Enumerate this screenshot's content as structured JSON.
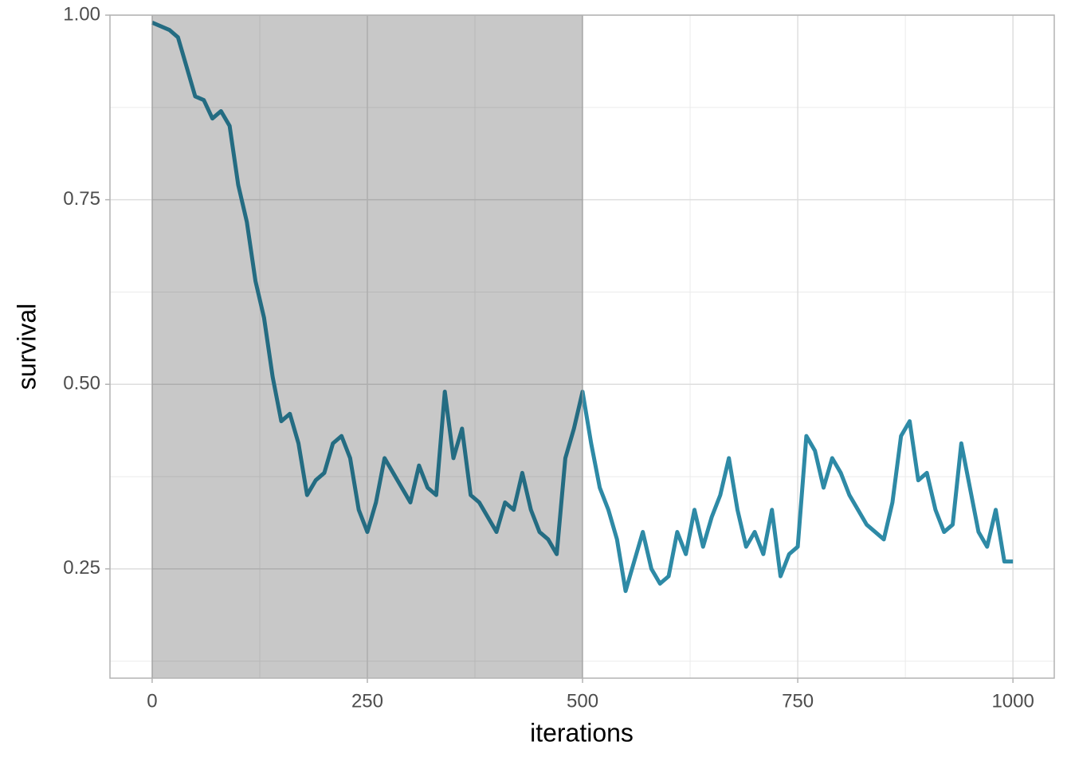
{
  "chart_data": {
    "type": "line",
    "x_label": "iterations",
    "y_label": "survival",
    "x": [
      0,
      10,
      20,
      30,
      40,
      50,
      60,
      70,
      80,
      90,
      100,
      110,
      120,
      130,
      140,
      150,
      160,
      170,
      180,
      190,
      200,
      210,
      220,
      230,
      240,
      250,
      260,
      270,
      280,
      290,
      300,
      310,
      320,
      330,
      340,
      350,
      360,
      370,
      380,
      390,
      400,
      410,
      420,
      430,
      440,
      450,
      460,
      470,
      480,
      490,
      500,
      510,
      520,
      530,
      540,
      550,
      560,
      570,
      580,
      590,
      600,
      610,
      620,
      630,
      640,
      650,
      660,
      670,
      680,
      690,
      700,
      710,
      720,
      730,
      740,
      750,
      760,
      770,
      780,
      790,
      800,
      810,
      820,
      830,
      840,
      850,
      860,
      870,
      880,
      890,
      900,
      910,
      920,
      930,
      940,
      950,
      960,
      970,
      980,
      990,
      1000
    ],
    "series": [
      {
        "color": "#2e8aa6",
        "values": [
          0.99,
          0.985,
          0.98,
          0.97,
          0.93,
          0.89,
          0.885,
          0.86,
          0.87,
          0.85,
          0.77,
          0.72,
          0.64,
          0.59,
          0.51,
          0.45,
          0.46,
          0.42,
          0.35,
          0.37,
          0.38,
          0.42,
          0.43,
          0.4,
          0.33,
          0.3,
          0.34,
          0.4,
          0.38,
          0.36,
          0.34,
          0.39,
          0.36,
          0.35,
          0.49,
          0.4,
          0.44,
          0.35,
          0.34,
          0.32,
          0.3,
          0.34,
          0.33,
          0.38,
          0.33,
          0.3,
          0.29,
          0.27,
          0.4,
          0.44,
          0.49,
          0.42,
          0.36,
          0.33,
          0.29,
          0.22,
          0.26,
          0.3,
          0.25,
          0.23,
          0.24,
          0.3,
          0.27,
          0.33,
          0.28,
          0.32,
          0.35,
          0.4,
          0.33,
          0.28,
          0.3,
          0.27,
          0.33,
          0.24,
          0.27,
          0.28,
          0.43,
          0.41,
          0.36,
          0.4,
          0.38,
          0.35,
          0.33,
          0.31,
          0.3,
          0.29,
          0.34,
          0.43,
          0.45,
          0.37,
          0.38,
          0.33,
          0.3,
          0.31,
          0.42,
          0.36,
          0.3,
          0.28,
          0.33,
          0.26,
          0.26
        ]
      }
    ],
    "shade_xlim": [
      0,
      500
    ],
    "xlim": [
      -49,
      1048
    ],
    "ylim": [
      0.102,
      1.0
    ],
    "xticks": [
      0,
      250,
      500,
      750,
      1000
    ],
    "yticks": [
      {
        "value": 0.25,
        "label": "0.25"
      },
      {
        "value": 0.5,
        "label": "0.50"
      },
      {
        "value": 0.75,
        "label": "0.75"
      },
      {
        "value": 1,
        "label": "1.00"
      }
    ],
    "x_minor_ticks": [
      125,
      375,
      625,
      875
    ],
    "y_minor_ticks": [
      0.125,
      0.375,
      0.625,
      0.875
    ],
    "grid": true
  }
}
